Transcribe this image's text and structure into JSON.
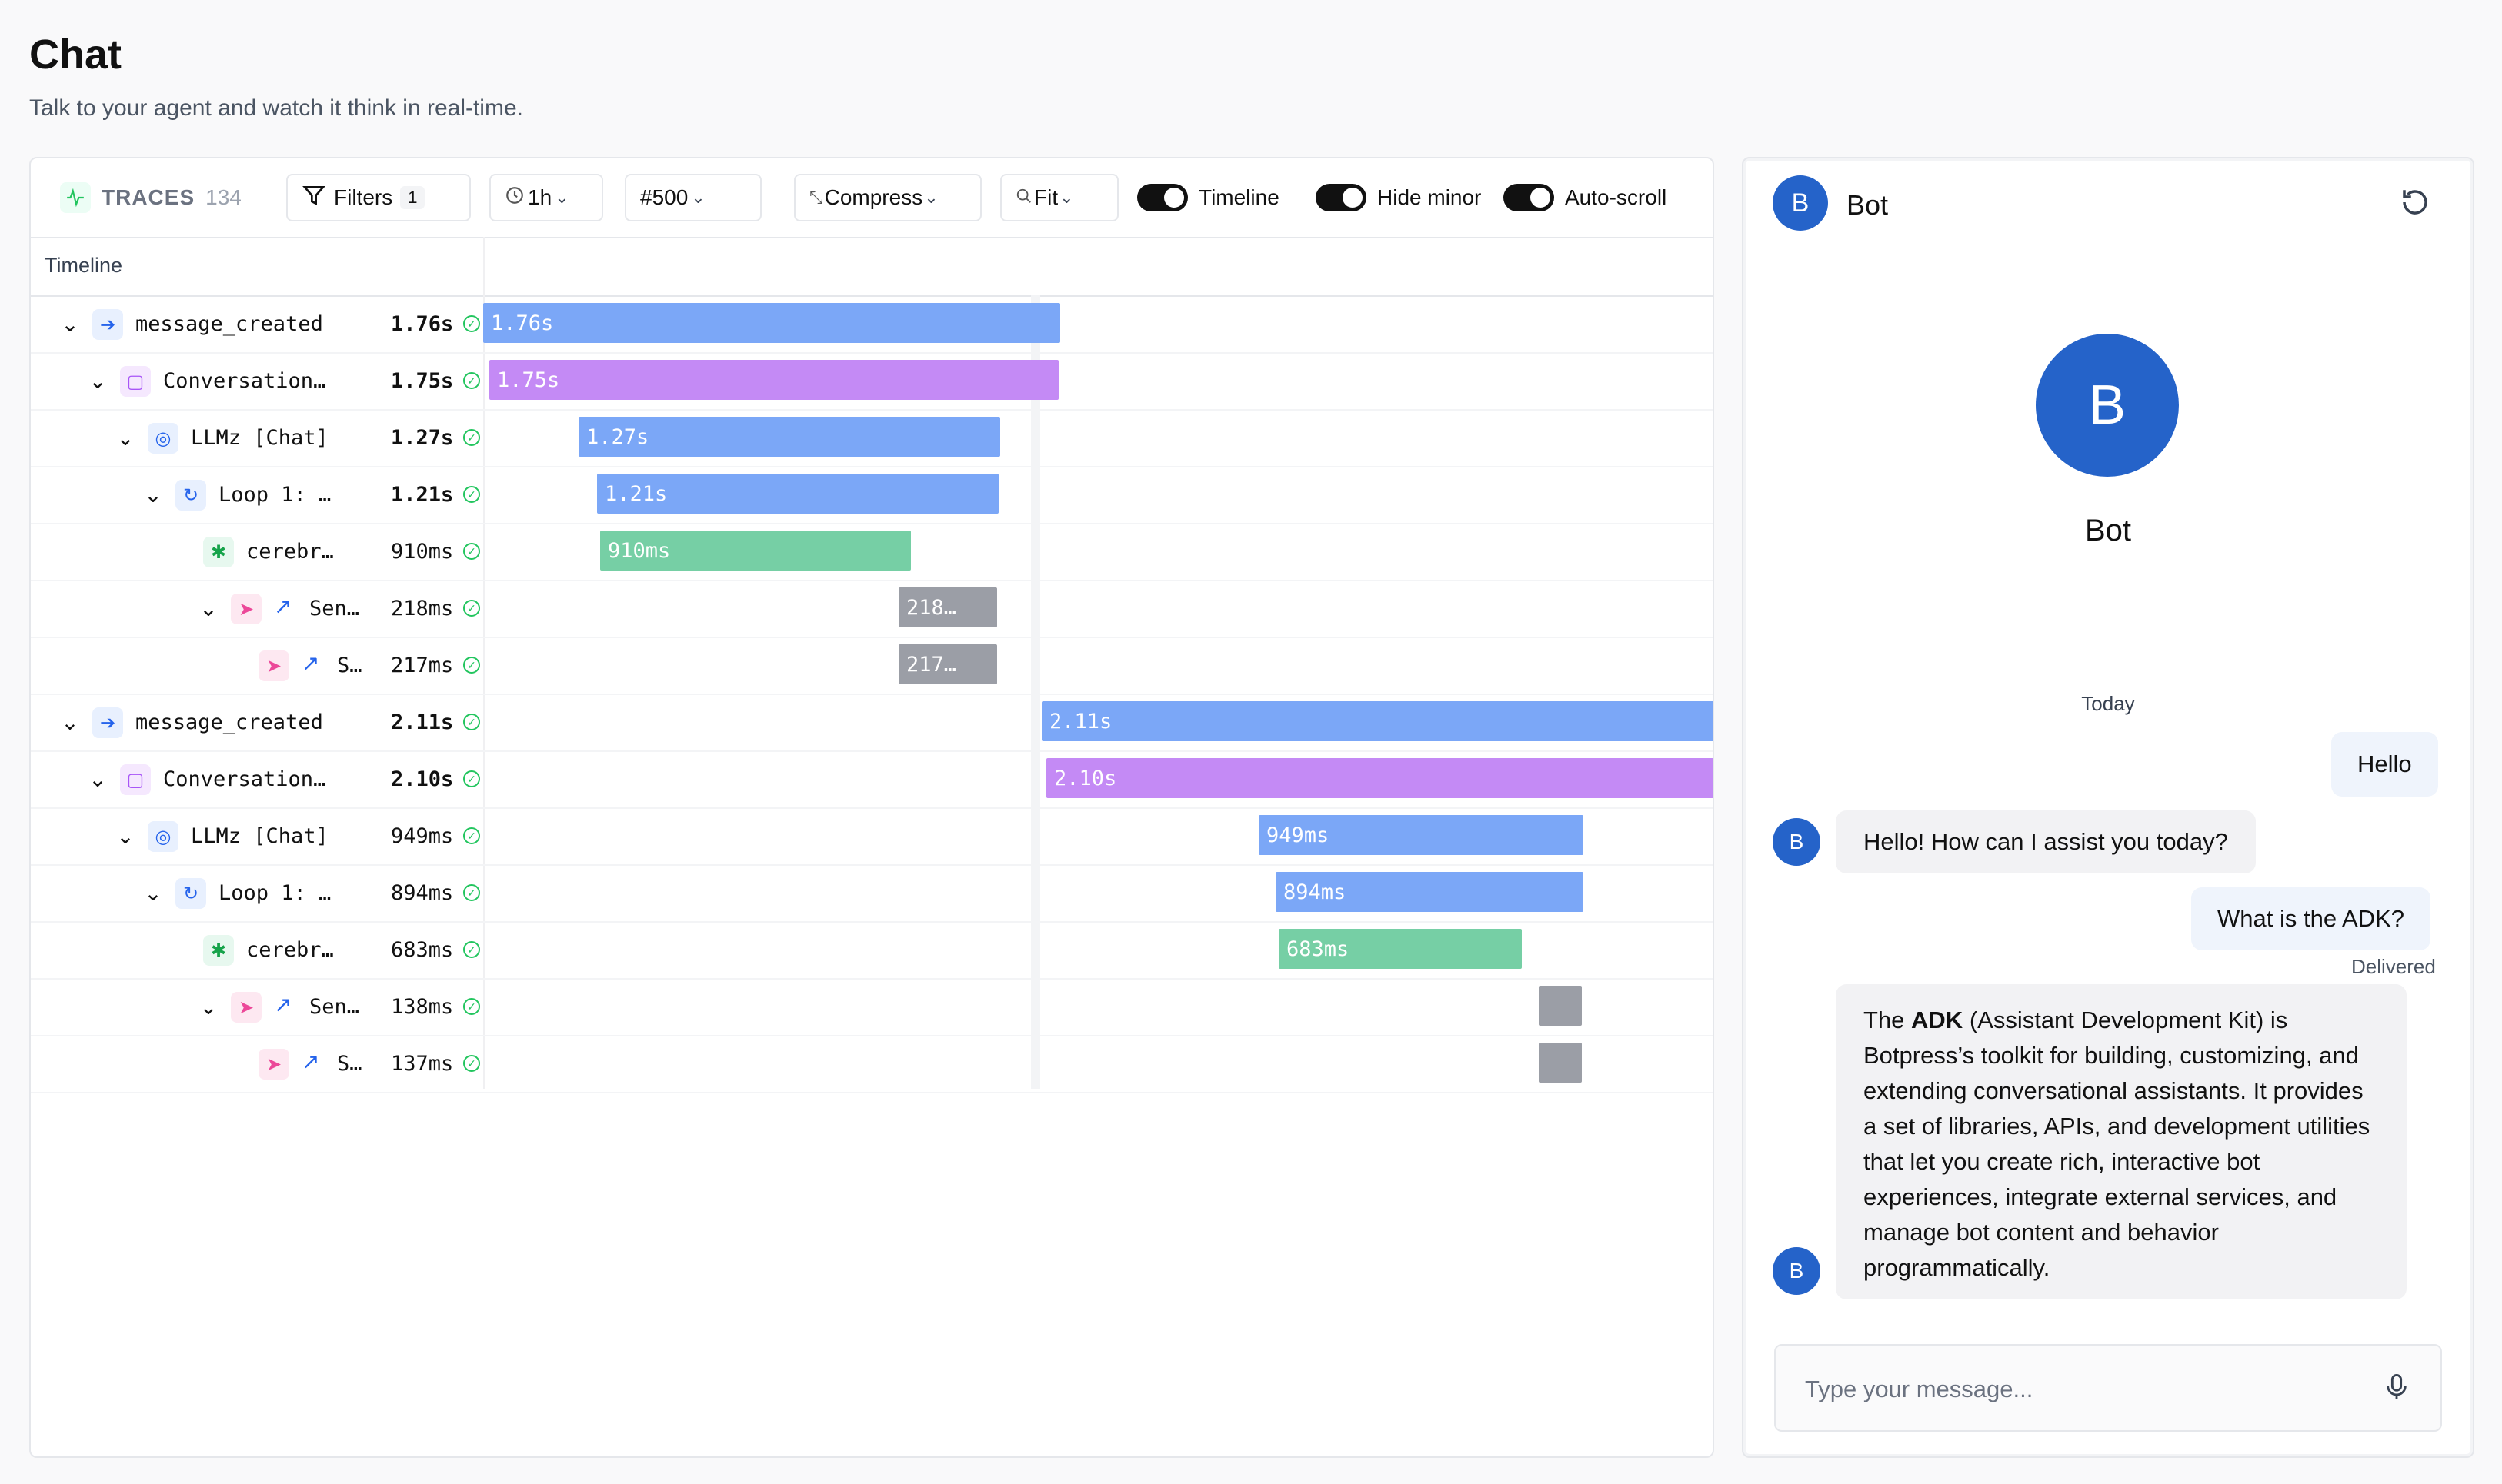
{
  "page": {
    "title": "Chat",
    "subtitle": "Talk to your agent and watch it think in real-time."
  },
  "toolbar": {
    "traces_label": "TRACES",
    "traces_count": "134",
    "filters_label": "Filters",
    "filters_badge": "1",
    "time_range": "1h",
    "limit": "#500",
    "compress_label": "Compress",
    "fit_label": "Fit",
    "toggle_timeline": "Timeline",
    "toggle_hide_minor": "Hide minor",
    "toggle_auto_scroll": "Auto-scroll"
  },
  "timeline": {
    "header": "Timeline",
    "rows": [
      {
        "name": "message_created",
        "duration": "1.76s",
        "bar_label": "1.76s",
        "color": "#7ba7f7"
      },
      {
        "name": "Conversation…",
        "duration": "1.75s",
        "bar_label": "1.75s",
        "color": "#c48af5"
      },
      {
        "name": "LLMz [Chat]",
        "duration": "1.27s",
        "bar_label": "1.27s",
        "color": "#7ba7f7"
      },
      {
        "name": "Loop 1: …",
        "duration": "1.21s",
        "bar_label": "1.21s",
        "color": "#7ba7f7"
      },
      {
        "name": "cerebr…",
        "duration": "910ms",
        "bar_label": "910ms",
        "color": "#76cfa5"
      },
      {
        "name": "Sen…",
        "duration": "218ms",
        "bar_label": "218…",
        "color": "#9b9ea6"
      },
      {
        "name": "S…",
        "duration": "217ms",
        "bar_label": "217…",
        "color": "#9b9ea6"
      },
      {
        "name": "message_created",
        "duration": "2.11s",
        "bar_label": "2.11s",
        "color": "#7ba7f7"
      },
      {
        "name": "Conversation…",
        "duration": "2.10s",
        "bar_label": "2.10s",
        "color": "#c48af5"
      },
      {
        "name": "LLMz [Chat]",
        "duration": "949ms",
        "bar_label": "949ms",
        "color": "#7ba7f7"
      },
      {
        "name": "Loop 1: …",
        "duration": "894ms",
        "bar_label": "894ms",
        "color": "#7ba7f7"
      },
      {
        "name": "cerebr…",
        "duration": "683ms",
        "bar_label": "683ms",
        "color": "#76cfa5"
      },
      {
        "name": "Sen…",
        "duration": "138ms",
        "bar_label": "",
        "color": "#9b9ea6"
      },
      {
        "name": "S…",
        "duration": "137ms",
        "bar_label": "",
        "color": "#9b9ea6"
      }
    ]
  },
  "chat": {
    "header_avatar": "B",
    "header_title": "Bot",
    "profile_avatar": "B",
    "profile_name": "Bot",
    "day_label": "Today",
    "messages": [
      {
        "from": "user",
        "text": "Hello"
      },
      {
        "from": "bot",
        "avatar": "B",
        "text": "Hello! How can I assist you today?"
      },
      {
        "from": "user",
        "text": "What is the ADK?",
        "status": "Delivered"
      },
      {
        "from": "bot",
        "avatar": "B",
        "text_prefix": "The ",
        "text_bold": "ADK",
        "text_rest": " (Assistant Development Kit) is Botpress’s toolkit for building, customizing, and extending conversational assistants. It provides a set of libraries, APIs, and development utilities that let you create rich, interactive bot experiences, integrate external services, and manage bot content and behavior programmatically."
      }
    ],
    "input_placeholder": "Type your message..."
  },
  "colors": {
    "bar_blue": "#7ba7f7",
    "bar_purple": "#c48af5",
    "bar_green": "#76cfa5",
    "bar_gray": "#9b9ea6",
    "avatar_blue": "#2563c9",
    "success_green": "#22c55e"
  }
}
